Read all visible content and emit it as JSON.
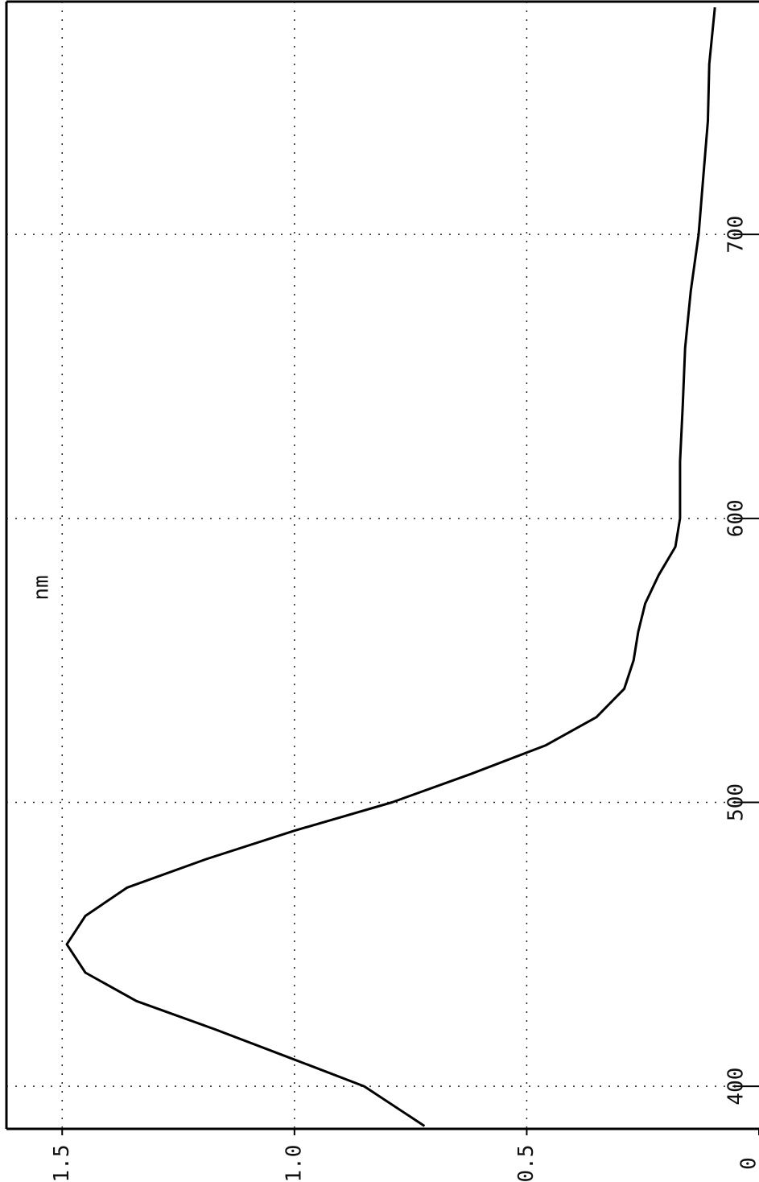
{
  "chart_data": {
    "type": "line",
    "x_label": "nm",
    "x": [
      386,
      400,
      410,
      420,
      430,
      440,
      450,
      460,
      470,
      480,
      490,
      500,
      510,
      520,
      530,
      540,
      550,
      560,
      570,
      580,
      590,
      600,
      620,
      640,
      660,
      680,
      700,
      720,
      740,
      760,
      780
    ],
    "series": [
      {
        "color": "#000000",
        "values": [
          0.72,
          0.85,
          1.01,
          1.17,
          1.34,
          1.45,
          1.49,
          1.45,
          1.36,
          1.19,
          1.0,
          0.79,
          0.62,
          0.46,
          0.35,
          0.29,
          0.27,
          0.26,
          0.245,
          0.216,
          0.18,
          0.17,
          0.17,
          0.164,
          0.159,
          0.147,
          0.13,
          0.12,
          0.11,
          0.107,
          0.095
        ]
      }
    ],
    "xlim": [
      385,
      782
    ],
    "xticks": [
      400,
      500,
      600,
      700
    ],
    "ylim": [
      0,
      1.62
    ],
    "yticks": [
      0,
      {
        "value": 0.5,
        "label": "0.5"
      },
      {
        "value": 1,
        "label": "1.0"
      },
      {
        "value": 1.5,
        "label": "1.5"
      }
    ],
    "grid": true
  }
}
